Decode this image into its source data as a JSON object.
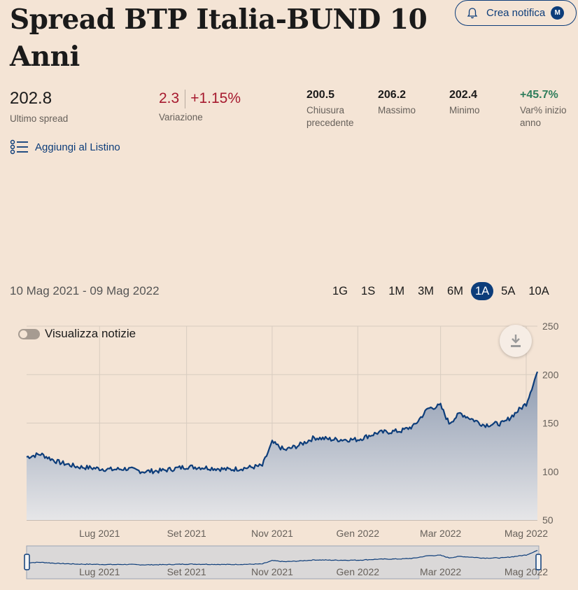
{
  "title": "Spread BTP Italia-BUND 10 Anni",
  "notify": {
    "label": "Crea notifica",
    "badge": "M"
  },
  "stats": {
    "last": {
      "value": "202.8",
      "label": "Ultimo spread"
    },
    "change": {
      "abs": "2.3",
      "pct": "+1.15%",
      "label": "Variazione"
    },
    "prev_close": {
      "value": "200.5",
      "label": "Chiusura precedente"
    },
    "high": {
      "value": "206.2",
      "label": "Massimo"
    },
    "low": {
      "value": "202.4",
      "label": "Minimo"
    },
    "ytd": {
      "value": "+45.7%",
      "label": "Var% inizio anno"
    }
  },
  "watchlist": {
    "label": "Aggiungi al Listino"
  },
  "date_range": "10 Mag 2021 - 09 Mag 2022",
  "periods": [
    "1G",
    "1S",
    "1M",
    "3M",
    "6M",
    "1A",
    "5A",
    "10A"
  ],
  "active_period": "1A",
  "news_toggle": {
    "label": "Visualizza notizie",
    "on": false
  },
  "colors": {
    "line": "#0d3d7a",
    "accent": "#0d3d7a",
    "negative": "#a6192e",
    "positive": "#2e7d5b"
  },
  "chart_data": {
    "type": "area",
    "x_ticks": [
      "Lug 2021",
      "Set 2021",
      "Nov 2021",
      "Gen 2022",
      "Mar 2022",
      "Mag 2022"
    ],
    "y_ticks": [
      50,
      100,
      150,
      200,
      250
    ],
    "ylim": [
      50,
      250
    ],
    "grid": true,
    "x": [
      "2021-05-10",
      "2021-05-20",
      "2021-06-01",
      "2021-06-15",
      "2021-07-01",
      "2021-07-10",
      "2021-07-20",
      "2021-08-01",
      "2021-08-15",
      "2021-09-01",
      "2021-09-15",
      "2021-10-01",
      "2021-10-15",
      "2021-10-25",
      "2021-11-01",
      "2021-11-10",
      "2021-11-20",
      "2021-12-01",
      "2021-12-15",
      "2022-01-01",
      "2022-01-15",
      "2022-02-01",
      "2022-02-10",
      "2022-02-20",
      "2022-03-01",
      "2022-03-07",
      "2022-03-15",
      "2022-04-01",
      "2022-04-15",
      "2022-05-01",
      "2022-05-09"
    ],
    "values": [
      115,
      118,
      110,
      105,
      103,
      102,
      103,
      100,
      101,
      105,
      104,
      102,
      104,
      106,
      130,
      122,
      127,
      135,
      133,
      133,
      140,
      142,
      147,
      165,
      168,
      150,
      160,
      148,
      150,
      170,
      203
    ]
  }
}
